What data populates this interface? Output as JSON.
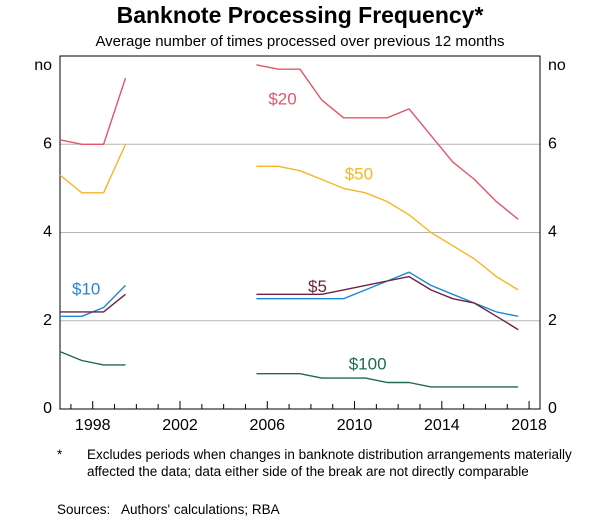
{
  "chart_data": {
    "type": "line",
    "title": "Banknote Processing Frequency*",
    "subtitle": "Average number of times processed over previous 12 months",
    "ylabel_left": "no",
    "ylabel_right": "no",
    "xlim": [
      1996.5,
      2018.5
    ],
    "ylim": [
      0,
      8
    ],
    "grid": true,
    "x_ticks": [
      1998,
      2002,
      2006,
      2010,
      2014,
      2018
    ],
    "x_tick_labels": [
      "1998",
      "2002",
      "2006",
      "2010",
      "2014",
      "2018"
    ],
    "y_ticks": [
      0,
      2,
      4,
      6
    ],
    "y_tick_labels": [
      "0",
      "2",
      "4",
      "6"
    ],
    "break": {
      "start": 2000,
      "end": 2005.5
    },
    "series": [
      {
        "name": "$20",
        "color": "#e5546a",
        "label_x": 2006.7,
        "label_y": 7.0,
        "segments": [
          [
            [
              1996.5,
              6.1
            ],
            [
              1997.5,
              6.0
            ],
            [
              1998.5,
              6.0
            ],
            [
              1999.5,
              7.5
            ]
          ],
          [
            [
              2005.5,
              7.8
            ],
            [
              2006.5,
              7.7
            ],
            [
              2007.5,
              7.7
            ],
            [
              2008.5,
              7.0
            ],
            [
              2009.5,
              6.6
            ],
            [
              2010.5,
              6.6
            ],
            [
              2011.5,
              6.6
            ],
            [
              2012.5,
              6.8
            ],
            [
              2013.5,
              6.2
            ],
            [
              2014.5,
              5.6
            ],
            [
              2015.5,
              5.2
            ],
            [
              2016.5,
              4.7
            ],
            [
              2017.5,
              4.3
            ]
          ]
        ]
      },
      {
        "name": "$50",
        "color": "#f6b526",
        "label_x": 2010.2,
        "label_y": 5.3,
        "segments": [
          [
            [
              1996.5,
              5.3
            ],
            [
              1997.5,
              4.9
            ],
            [
              1998.5,
              4.9
            ],
            [
              1999.5,
              6.0
            ]
          ],
          [
            [
              2005.5,
              5.5
            ],
            [
              2006.5,
              5.5
            ],
            [
              2007.5,
              5.4
            ],
            [
              2008.5,
              5.2
            ],
            [
              2009.5,
              5.0
            ],
            [
              2010.5,
              4.9
            ],
            [
              2011.5,
              4.7
            ],
            [
              2012.5,
              4.4
            ],
            [
              2013.5,
              4.0
            ],
            [
              2014.5,
              3.7
            ],
            [
              2015.5,
              3.4
            ],
            [
              2016.5,
              3.0
            ],
            [
              2017.5,
              2.7
            ]
          ]
        ]
      },
      {
        "name": "$10",
        "color": "#1e88d8",
        "label_x": 1997.7,
        "label_y": 2.7,
        "segments": [
          [
            [
              1996.5,
              2.1
            ],
            [
              1997.5,
              2.1
            ],
            [
              1998.5,
              2.3
            ],
            [
              1999.5,
              2.8
            ]
          ],
          [
            [
              2005.5,
              2.5
            ],
            [
              2006.5,
              2.5
            ],
            [
              2007.5,
              2.5
            ],
            [
              2008.5,
              2.5
            ],
            [
              2009.5,
              2.5
            ],
            [
              2010.5,
              2.7
            ],
            [
              2011.5,
              2.9
            ],
            [
              2012.5,
              3.1
            ],
            [
              2013.5,
              2.8
            ],
            [
              2014.5,
              2.6
            ],
            [
              2015.5,
              2.4
            ],
            [
              2016.5,
              2.2
            ],
            [
              2017.5,
              2.1
            ]
          ]
        ]
      },
      {
        "name": "$5",
        "color": "#6e2440",
        "label_x": 2008.3,
        "label_y": 2.75,
        "segments": [
          [
            [
              1996.5,
              2.2
            ],
            [
              1997.5,
              2.2
            ],
            [
              1998.5,
              2.2
            ],
            [
              1999.5,
              2.6
            ]
          ],
          [
            [
              2005.5,
              2.6
            ],
            [
              2006.5,
              2.6
            ],
            [
              2007.5,
              2.6
            ],
            [
              2008.5,
              2.6
            ],
            [
              2009.5,
              2.7
            ],
            [
              2010.5,
              2.8
            ],
            [
              2011.5,
              2.9
            ],
            [
              2012.5,
              3.0
            ],
            [
              2013.5,
              2.7
            ],
            [
              2014.5,
              2.5
            ],
            [
              2015.5,
              2.4
            ],
            [
              2016.5,
              2.1
            ],
            [
              2017.5,
              1.8
            ]
          ]
        ]
      },
      {
        "name": "$100",
        "color": "#1f6b4a",
        "label_x": 2010.6,
        "label_y": 1.0,
        "segments": [
          [
            [
              1996.5,
              1.3
            ],
            [
              1997.5,
              1.1
            ],
            [
              1998.5,
              1.0
            ],
            [
              1999.5,
              1.0
            ]
          ],
          [
            [
              2005.5,
              0.8
            ],
            [
              2006.5,
              0.8
            ],
            [
              2007.5,
              0.8
            ],
            [
              2008.5,
              0.7
            ],
            [
              2009.5,
              0.7
            ],
            [
              2010.5,
              0.7
            ],
            [
              2011.5,
              0.6
            ],
            [
              2012.5,
              0.6
            ],
            [
              2013.5,
              0.5
            ],
            [
              2014.5,
              0.5
            ],
            [
              2015.5,
              0.5
            ],
            [
              2016.5,
              0.5
            ],
            [
              2017.5,
              0.5
            ]
          ]
        ]
      }
    ]
  },
  "footnote": {
    "mark": "*",
    "text": "Excludes periods when changes in banknote distribution arrangements materially affected the data; data either side of the break are not directly comparable"
  },
  "sources": {
    "label": "Sources:",
    "text": "Authors' calculations; RBA"
  }
}
